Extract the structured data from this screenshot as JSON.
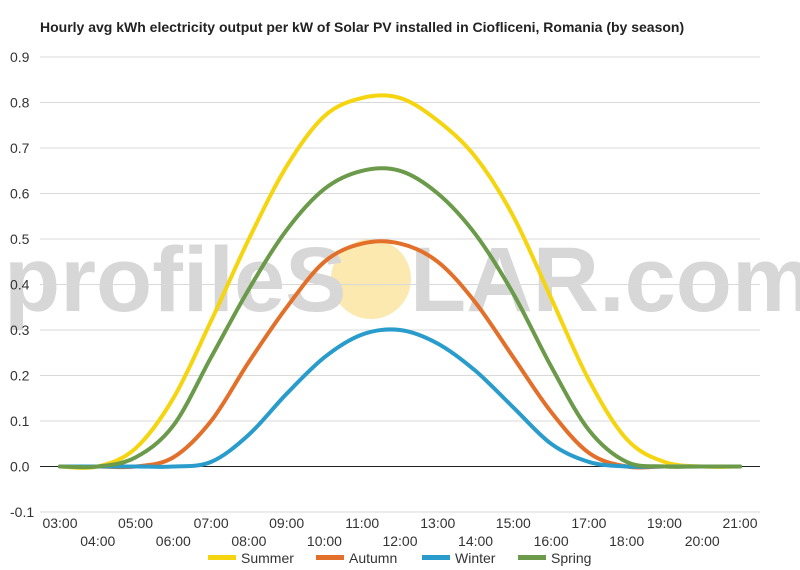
{
  "chart_data": {
    "type": "line",
    "title": "Hourly avg kWh electricity output per kW of Solar PV installed in Ciofliceni, Romania (by season)",
    "xlabel": "",
    "ylabel": "",
    "x": [
      "03:00",
      "04:00",
      "05:00",
      "06:00",
      "07:00",
      "08:00",
      "09:00",
      "10:00",
      "11:00",
      "12:00",
      "13:00",
      "14:00",
      "15:00",
      "16:00",
      "17:00",
      "18:00",
      "19:00",
      "20:00",
      "21:00"
    ],
    "ylim": [
      -0.1,
      0.9
    ],
    "yticks": [
      "0.9",
      "0.8",
      "0.7",
      "0.6",
      "0.5",
      "0.4",
      "0.3",
      "0.2",
      "0.1",
      "0.0",
      "-0.1"
    ],
    "ytick_values": [
      0.9,
      0.8,
      0.7,
      0.6,
      0.5,
      0.4,
      0.3,
      0.2,
      0.1,
      0.0,
      -0.1
    ],
    "grid": true,
    "legend_position": "bottom",
    "series": [
      {
        "name": "Summer",
        "color": "#f5d410",
        "values": [
          0.0,
          0.0,
          0.04,
          0.15,
          0.32,
          0.5,
          0.66,
          0.77,
          0.81,
          0.81,
          0.76,
          0.68,
          0.55,
          0.37,
          0.19,
          0.06,
          0.01,
          0.0,
          0.0
        ]
      },
      {
        "name": "Autumn",
        "color": "#e2702b",
        "values": [
          0.0,
          0.0,
          0.0,
          0.02,
          0.1,
          0.23,
          0.35,
          0.45,
          0.49,
          0.49,
          0.45,
          0.36,
          0.24,
          0.12,
          0.03,
          0.0,
          0.0,
          0.0,
          0.0
        ]
      },
      {
        "name": "Winter",
        "color": "#2a9ccc",
        "values": [
          0.0,
          0.0,
          0.0,
          0.0,
          0.01,
          0.07,
          0.16,
          0.24,
          0.29,
          0.3,
          0.27,
          0.21,
          0.13,
          0.05,
          0.01,
          0.0,
          0.0,
          0.0,
          0.0
        ]
      },
      {
        "name": "Spring",
        "color": "#6a9a4a",
        "values": [
          0.0,
          0.0,
          0.02,
          0.09,
          0.24,
          0.39,
          0.52,
          0.61,
          0.65,
          0.65,
          0.6,
          0.51,
          0.38,
          0.22,
          0.08,
          0.01,
          0.0,
          0.0,
          0.0
        ]
      }
    ]
  },
  "watermark": {
    "text_left": "profileS",
    "text_right": "LAR.com",
    "sun_color": "#fbe9b0"
  }
}
